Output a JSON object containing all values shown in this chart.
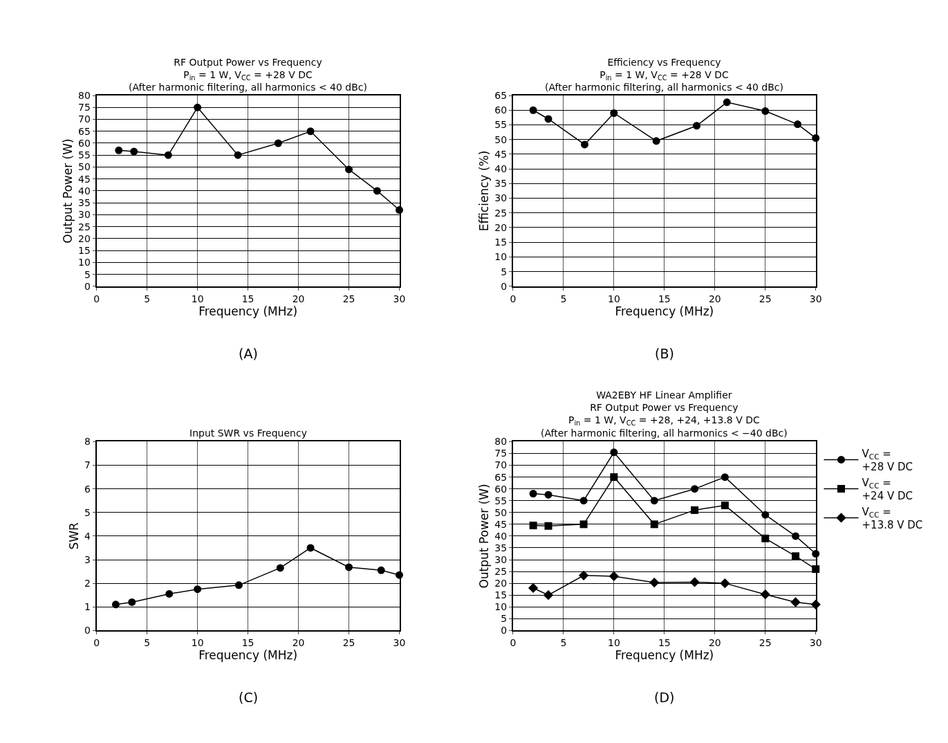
{
  "chart_data": [
    {
      "type": "line",
      "title": "RF Output Power vs Frequency",
      "subtitle": "P$_{in}$ = 1 W, V$_{CC}$ = +28 V DC\n(After harmonic filtering, all harmonics < 40 dBc)",
      "xlabel": "Frequency (MHz)",
      "ylabel": "Output Power (W)",
      "annotations": [
        "(A)"
      ],
      "xlim": [
        0,
        30
      ],
      "xticks": [
        0,
        5,
        10,
        15,
        20,
        25,
        30
      ],
      "ylim": [
        0,
        80
      ],
      "yticks": [
        0,
        5,
        10,
        15,
        20,
        25,
        30,
        35,
        40,
        45,
        50,
        55,
        60,
        65,
        70,
        75,
        80
      ],
      "grid": true,
      "marker": "circle",
      "line_style": "solid",
      "series": [
        {
          "color": "#000000",
          "x": [
            2.2,
            3.7,
            7.1,
            10,
            14,
            18,
            21.2,
            25,
            27.8,
            30
          ],
          "values": [
            57,
            56.5,
            55,
            75,
            55,
            60,
            65,
            49,
            40,
            32
          ]
        }
      ]
    },
    {
      "type": "line",
      "title": "Efficiency vs Frequency",
      "subtitle": "P$_{in}$ = 1 W, V$_{CC}$ = +28 V DC\n(After harmonic filtering, all harmonics < 40 dBc)",
      "xlabel": "Frequency (MHz)",
      "ylabel": "Efficiency (%)",
      "annotations": [
        "(B)"
      ],
      "xlim": [
        0,
        30
      ],
      "xticks": [
        0,
        5,
        10,
        15,
        20,
        25,
        30
      ],
      "ylim": [
        0,
        65
      ],
      "yticks": [
        0,
        5,
        10,
        15,
        20,
        25,
        30,
        35,
        40,
        45,
        50,
        55,
        60,
        65
      ],
      "grid": true,
      "marker": "circle",
      "line_style": "solid",
      "series": [
        {
          "color": "#000000",
          "x": [
            2.0,
            3.5,
            7.1,
            10,
            14.2,
            18.2,
            21.2,
            25,
            28.2,
            30
          ],
          "values": [
            60,
            57,
            48.3,
            59,
            49.5,
            54.7,
            62.7,
            59.7,
            55.2,
            50.5
          ]
        }
      ]
    },
    {
      "type": "line",
      "title": "Input SWR vs Frequency",
      "xlabel": "Frequency (MHz)",
      "ylabel": "SWR",
      "annotations": [
        "(C)"
      ],
      "xlim": [
        0,
        30
      ],
      "xticks": [
        0,
        5,
        10,
        15,
        20,
        25,
        30
      ],
      "ylim": [
        0,
        8
      ],
      "yticks": [
        0,
        1,
        2,
        3,
        4,
        5,
        6,
        7,
        8
      ],
      "grid": true,
      "marker": "circle",
      "line_style": "solid",
      "series": [
        {
          "color": "#000000",
          "x": [
            1.9,
            3.5,
            7.2,
            10,
            14.1,
            18.2,
            21.2,
            25,
            28.2,
            30
          ],
          "values": [
            1.1,
            1.2,
            1.55,
            1.75,
            1.92,
            2.65,
            3.5,
            2.68,
            2.55,
            2.35
          ]
        }
      ]
    },
    {
      "type": "line",
      "title": "WA2EBY HF Linear Amplifier",
      "subtitle": "RF Output Power vs Frequency\nP$_{in}$ = 1 W, V$_{CC}$ = +28, +24, +13.8 V DC\n(After harmonic filtering, all harmonics < −40 dBc)",
      "xlabel": "Frequency (MHz)",
      "ylabel": "Output Power (W)",
      "annotations": [
        "(D)"
      ],
      "xlim": [
        0,
        30
      ],
      "xticks": [
        0,
        5,
        10,
        15,
        20,
        25,
        30
      ],
      "ylim": [
        0,
        80
      ],
      "yticks": [
        0,
        5,
        10,
        15,
        20,
        25,
        30,
        35,
        40,
        45,
        50,
        55,
        60,
        65,
        70,
        75,
        80
      ],
      "grid": true,
      "legend": "right",
      "line_style": "solid",
      "series": [
        {
          "name": "V$_{CC}$ =\n+28 V DC",
          "color": "#000000",
          "marker": "circle",
          "x": [
            2,
            3.5,
            7,
            10,
            14,
            18,
            21,
            25,
            28,
            30
          ],
          "values": [
            58,
            57.5,
            55,
            75.5,
            55,
            60,
            65,
            49,
            40,
            32.5
          ]
        },
        {
          "name": "V$_{CC}$ =\n+24 V DC",
          "color": "#000000",
          "marker": "square",
          "x": [
            2,
            3.5,
            7,
            10,
            14,
            18,
            21,
            25,
            28,
            30
          ],
          "values": [
            44.5,
            44.3,
            45,
            65,
            45,
            51,
            53,
            39,
            31.5,
            26
          ]
        },
        {
          "name": "V$_{CC}$ =\n+13.8 V DC",
          "color": "#000000",
          "marker": "diamond",
          "x": [
            2,
            3.5,
            7,
            10,
            14,
            18,
            21,
            25,
            28,
            30
          ],
          "values": [
            18,
            15,
            23.3,
            23,
            20.3,
            20.5,
            20,
            15.3,
            12,
            11
          ]
        }
      ]
    }
  ]
}
